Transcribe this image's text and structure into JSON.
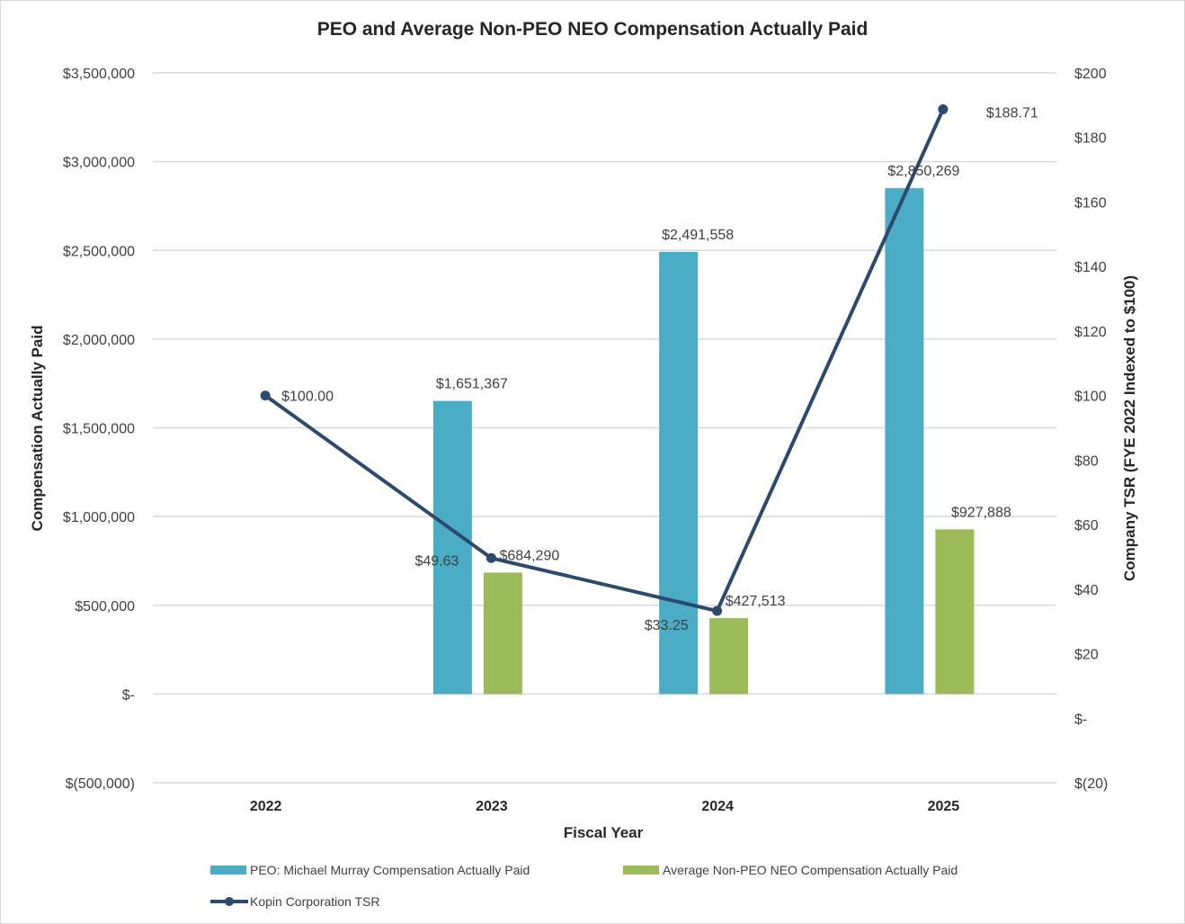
{
  "chart_data": {
    "type": "bar",
    "title": "PEO and Average Non-PEO NEO Compensation Actually Paid",
    "xlabel": "Fiscal Year",
    "ylabel": "Compensation Actually Paid",
    "y2label": "Company TSR (FYE 2022 Indexed to $100)",
    "categories": [
      "2022",
      "2023",
      "2024",
      "2025"
    ],
    "ylim": [
      -500000,
      3500000
    ],
    "y2lim": [
      -20,
      200
    ],
    "grid": true,
    "legend_position": "bottom",
    "yticks": [
      {
        "value": 3500000,
        "label": "$3,500,000"
      },
      {
        "value": 3000000,
        "label": "$3,000,000"
      },
      {
        "value": 2500000,
        "label": "$2,500,000"
      },
      {
        "value": 2000000,
        "label": "$2,000,000"
      },
      {
        "value": 1500000,
        "label": "$1,500,000"
      },
      {
        "value": 1000000,
        "label": "$1,000,000"
      },
      {
        "value": 500000,
        "label": "$500,000"
      },
      {
        "value": 0,
        "label": "$-"
      },
      {
        "value": -500000,
        "label": "$(500,000)"
      }
    ],
    "y2ticks": [
      {
        "value": 200,
        "label": "$200"
      },
      {
        "value": 180,
        "label": "$180"
      },
      {
        "value": 160,
        "label": "$160"
      },
      {
        "value": 140,
        "label": "$140"
      },
      {
        "value": 120,
        "label": "$120"
      },
      {
        "value": 100,
        "label": "$100"
      },
      {
        "value": 80,
        "label": "$80"
      },
      {
        "value": 60,
        "label": "$60"
      },
      {
        "value": 40,
        "label": "$40"
      },
      {
        "value": 20,
        "label": "$20"
      },
      {
        "value": 0,
        "label": "$-"
      },
      {
        "value": -20,
        "label": "$(20)"
      }
    ],
    "series": [
      {
        "name": "PEO: Michael Murray Compensation Actually Paid",
        "type": "bar",
        "axis": "left",
        "color": "#4bacc6",
        "values": [
          null,
          1651367,
          2491558,
          2850269
        ],
        "labels": [
          "",
          "$1,651,367",
          "$2,491,558",
          "$2,850,269"
        ]
      },
      {
        "name": "Average Non-PEO NEO Compensation Actually Paid",
        "type": "bar",
        "axis": "left",
        "color": "#9bbb59",
        "values": [
          null,
          684290,
          427513,
          927888
        ],
        "labels": [
          "",
          "$684,290",
          "$427,513",
          "$927,888"
        ]
      },
      {
        "name": "Kopin Corporation TSR",
        "type": "line",
        "axis": "right",
        "color": "#2c4a6e",
        "values": [
          100.0,
          49.63,
          33.25,
          188.71
        ],
        "labels": [
          "$100.00",
          "$49.63",
          "$33.25",
          "$188.71"
        ]
      }
    ]
  }
}
